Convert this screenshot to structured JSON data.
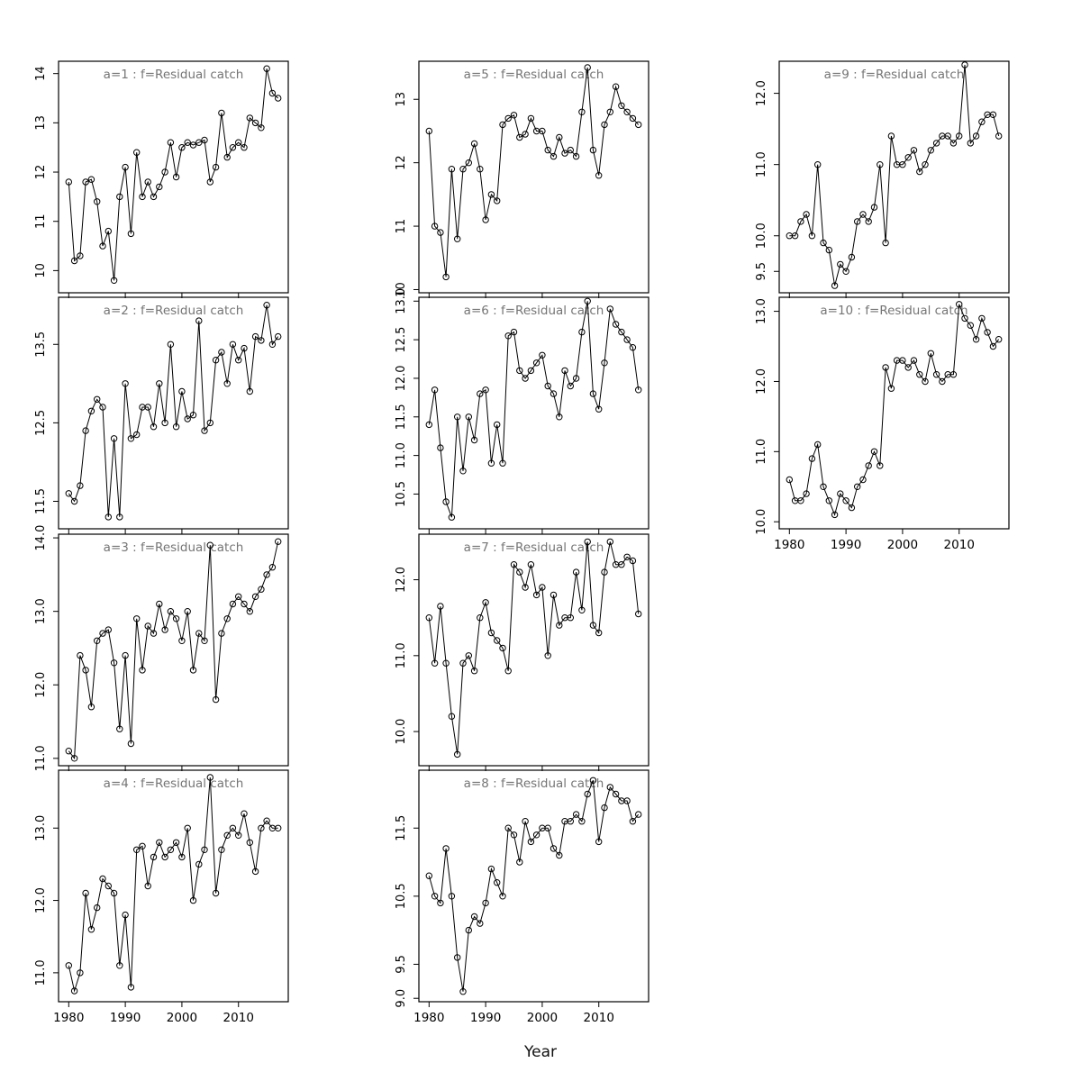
{
  "figure": {
    "xlabel": "Year"
  },
  "chart_data": {
    "type": "line",
    "title": "",
    "xlabel": "Year",
    "legend": "none",
    "grid": false,
    "xlim": [
      1978.2,
      2018.8
    ],
    "xticks": [
      "1980",
      "1990",
      "2000",
      "2010"
    ],
    "years": [
      1980,
      1981,
      1982,
      1983,
      1984,
      1985,
      1986,
      1987,
      1988,
      1989,
      1990,
      1991,
      1992,
      1993,
      1994,
      1995,
      1996,
      1997,
      1998,
      1999,
      2000,
      2001,
      2002,
      2003,
      2004,
      2005,
      2006,
      2007,
      2008,
      2009,
      2010,
      2011,
      2012,
      2013,
      2014,
      2015,
      2016,
      2017
    ],
    "panels": [
      {
        "id": "a1",
        "title": "a=1  :  f=Residual catch",
        "ylim": [
          9.55,
          14.25
        ],
        "ytick_labels": [
          "10",
          "11",
          "12",
          "13",
          "14"
        ],
        "show_x_labels": false,
        "values": [
          11.8,
          10.2,
          10.3,
          11.8,
          11.85,
          11.4,
          10.5,
          10.8,
          9.8,
          11.5,
          12.1,
          10.75,
          12.4,
          11.5,
          11.8,
          11.5,
          11.7,
          12.0,
          12.6,
          11.9,
          12.5,
          12.6,
          12.55,
          12.6,
          12.65,
          11.8,
          12.1,
          13.2,
          12.3,
          12.5,
          12.6,
          12.5,
          13.1,
          13.0,
          12.9,
          14.1,
          13.6,
          13.5
        ]
      },
      {
        "id": "a2",
        "title": "a=2  :  f=Residual catch",
        "ylim": [
          11.15,
          14.1
        ],
        "ytick_labels": [
          "11.5",
          "12.5",
          "13.5"
        ],
        "show_x_labels": false,
        "values": [
          11.6,
          11.5,
          11.7,
          12.4,
          12.65,
          12.8,
          12.7,
          11.3,
          12.3,
          11.3,
          13.0,
          12.3,
          12.35,
          12.7,
          12.7,
          12.45,
          13.0,
          12.5,
          13.5,
          12.45,
          12.9,
          12.55,
          12.6,
          13.8,
          12.4,
          12.5,
          13.3,
          13.4,
          13.0,
          13.5,
          13.3,
          13.45,
          12.9,
          13.6,
          13.55,
          14.0,
          13.5,
          13.6
        ]
      },
      {
        "id": "a3",
        "title": "a=3  :  f=Residual catch",
        "ylim": [
          10.9,
          14.05
        ],
        "ytick_labels": [
          "11.0",
          "12.0",
          "13.0",
          "14.0"
        ],
        "show_x_labels": false,
        "values": [
          11.1,
          11.0,
          12.4,
          12.2,
          11.7,
          12.6,
          12.7,
          12.75,
          12.3,
          11.4,
          12.4,
          11.2,
          12.9,
          12.2,
          12.8,
          12.7,
          13.1,
          12.75,
          13.0,
          12.9,
          12.6,
          13.0,
          12.2,
          12.7,
          12.6,
          13.9,
          11.8,
          12.7,
          12.9,
          13.1,
          13.2,
          13.1,
          13.0,
          13.2,
          13.3,
          13.5,
          13.6,
          13.95
        ]
      },
      {
        "id": "a4",
        "title": "a=4  :  f=Residual catch",
        "ylim": [
          10.6,
          13.8
        ],
        "ytick_labels": [
          "11.0",
          "12.0",
          "13.0"
        ],
        "show_x_labels": true,
        "values": [
          11.1,
          10.75,
          11.0,
          12.1,
          11.6,
          11.9,
          12.3,
          12.2,
          12.1,
          11.1,
          11.8,
          10.8,
          12.7,
          12.75,
          12.2,
          12.6,
          12.8,
          12.6,
          12.7,
          12.8,
          12.6,
          13.0,
          12.0,
          12.5,
          12.7,
          13.7,
          12.1,
          12.7,
          12.9,
          13.0,
          12.9,
          13.2,
          12.8,
          12.4,
          13.0,
          13.1,
          13.0,
          13.0
        ]
      },
      {
        "id": "a5",
        "title": "a=5  :  f=Residual catch",
        "ylim": [
          9.95,
          13.6
        ],
        "ytick_labels": [
          "10",
          "11",
          "12",
          "13"
        ],
        "show_x_labels": false,
        "values": [
          12.5,
          11.0,
          10.9,
          10.2,
          11.9,
          10.8,
          11.9,
          12.0,
          12.3,
          11.9,
          11.1,
          11.5,
          11.4,
          12.6,
          12.7,
          12.75,
          12.4,
          12.45,
          12.7,
          12.5,
          12.5,
          12.2,
          12.1,
          12.4,
          12.15,
          12.2,
          12.1,
          12.8,
          13.5,
          12.2,
          11.8,
          12.6,
          12.8,
          13.2,
          12.9,
          12.8,
          12.7,
          12.6
        ]
      },
      {
        "id": "a6",
        "title": "a=6  :  f=Residual catch",
        "ylim": [
          10.05,
          13.05
        ],
        "ytick_labels": [
          "10.5",
          "11.0",
          "11.5",
          "12.0",
          "12.5",
          "13.0"
        ],
        "show_x_labels": false,
        "values": [
          11.4,
          11.85,
          11.1,
          10.4,
          10.2,
          11.5,
          10.8,
          11.5,
          11.2,
          11.8,
          11.85,
          10.9,
          11.4,
          10.9,
          12.55,
          12.6,
          12.1,
          12.0,
          12.1,
          12.2,
          12.3,
          11.9,
          11.8,
          11.5,
          12.1,
          11.9,
          12.0,
          12.6,
          13.0,
          11.8,
          11.6,
          12.2,
          12.9,
          12.7,
          12.6,
          12.5,
          12.4,
          11.85
        ]
      },
      {
        "id": "a7",
        "title": "a=7  :  f=Residual catch",
        "ylim": [
          9.55,
          12.6
        ],
        "ytick_labels": [
          "10.0",
          "11.0",
          "12.0"
        ],
        "show_x_labels": false,
        "values": [
          11.5,
          10.9,
          11.65,
          10.9,
          10.2,
          9.7,
          10.9,
          11.0,
          10.8,
          11.5,
          11.7,
          11.3,
          11.2,
          11.1,
          10.8,
          12.2,
          12.1,
          11.9,
          12.2,
          11.8,
          11.9,
          11.0,
          11.8,
          11.4,
          11.5,
          11.5,
          12.1,
          11.6,
          12.5,
          11.4,
          11.3,
          12.1,
          12.5,
          12.2,
          12.2,
          12.3,
          12.25,
          11.55
        ]
      },
      {
        "id": "a8",
        "title": "a=8  :  f=Residual catch",
        "ylim": [
          8.95,
          12.35
        ],
        "ytick_labels": [
          "9.0",
          "9.5",
          "10.5",
          "11.5"
        ],
        "show_x_labels": true,
        "values": [
          10.8,
          10.5,
          10.4,
          11.2,
          10.5,
          9.6,
          9.1,
          10.0,
          10.2,
          10.1,
          10.4,
          10.9,
          10.7,
          10.5,
          11.5,
          11.4,
          11.0,
          11.6,
          11.3,
          11.4,
          11.5,
          11.5,
          11.2,
          11.1,
          11.6,
          11.6,
          11.7,
          11.6,
          12.0,
          12.2,
          11.3,
          11.8,
          12.1,
          12.0,
          11.9,
          11.9,
          11.6,
          11.7
        ]
      },
      {
        "id": "a9",
        "title": "a=9  :  f=Residual catch",
        "ylim": [
          9.2,
          12.45
        ],
        "ytick_labels": [
          "9.5",
          "10.0",
          "11.0",
          "12.0"
        ],
        "show_x_labels": false,
        "values": [
          10.0,
          10.0,
          10.2,
          10.3,
          10.0,
          11.0,
          9.9,
          9.8,
          9.3,
          9.6,
          9.5,
          9.7,
          10.2,
          10.3,
          10.2,
          10.4,
          11.0,
          9.9,
          11.4,
          11.0,
          11.0,
          11.1,
          11.2,
          10.9,
          11.0,
          11.2,
          11.3,
          11.4,
          11.4,
          11.3,
          11.4,
          12.4,
          11.3,
          11.4,
          11.6,
          11.7,
          11.7,
          11.4
        ]
      },
      {
        "id": "a10",
        "title": "a=10  :  f=Residual catch",
        "ylim": [
          9.9,
          13.2
        ],
        "ytick_labels": [
          "10.0",
          "11.0",
          "12.0",
          "13.0"
        ],
        "show_x_labels": true,
        "values": [
          10.6,
          10.3,
          10.3,
          10.4,
          10.9,
          11.1,
          10.5,
          10.3,
          10.1,
          10.4,
          10.3,
          10.2,
          10.5,
          10.6,
          10.8,
          11.0,
          10.8,
          12.2,
          11.9,
          12.3,
          12.3,
          12.2,
          12.3,
          12.1,
          12.0,
          12.4,
          12.1,
          12.0,
          12.1,
          12.1,
          13.1,
          12.9,
          12.8,
          12.6,
          12.9,
          12.7,
          12.5,
          12.6
        ]
      }
    ],
    "style": {
      "line_color": "#000000",
      "point_color": "#000000",
      "title_color": "#757575",
      "box_color": "#000000"
    }
  }
}
